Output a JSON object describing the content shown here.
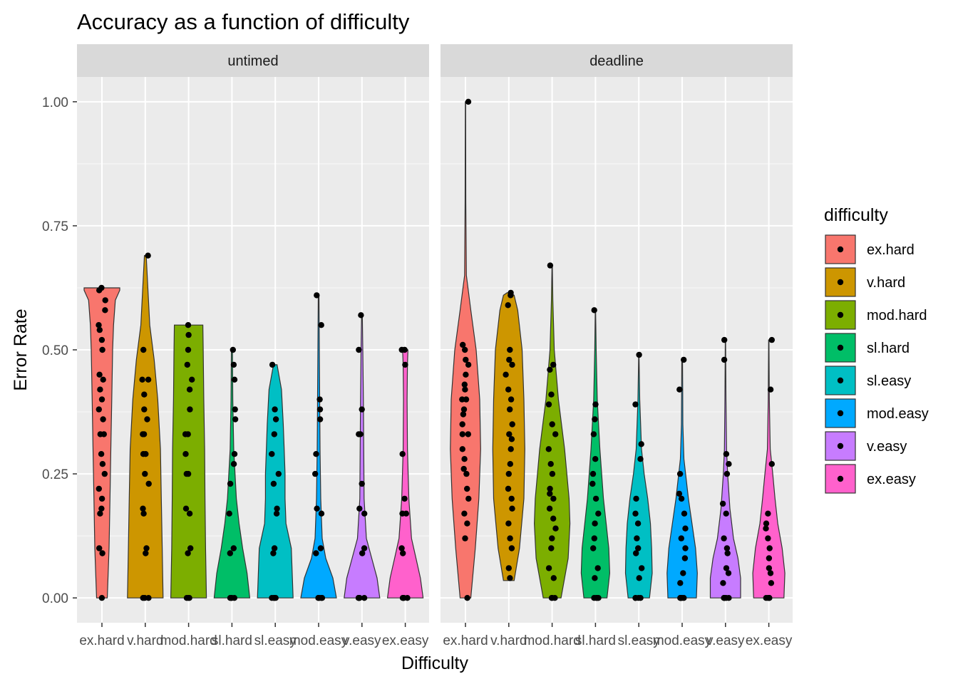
{
  "chart_data": {
    "type": "violin",
    "title": "Accuracy as a function of difficulty",
    "xlabel": "Difficulty",
    "ylabel": "Error Rate",
    "ylim": [
      -0.05,
      1.05
    ],
    "yticks": [
      0.0,
      0.25,
      0.5,
      0.75,
      1.0
    ],
    "ytick_labels": [
      "0.00",
      "0.25",
      "0.50",
      "0.75",
      "1.00"
    ],
    "grid": true,
    "legend": {
      "title": "difficulty",
      "placement": "right",
      "entries": [
        "ex.hard",
        "v.hard",
        "mod.hard",
        "sl.hard",
        "sl.easy",
        "mod.easy",
        "v.easy",
        "ex.easy"
      ]
    },
    "categories": [
      "ex.hard",
      "v.hard",
      "mod.hard",
      "sl.hard",
      "sl.easy",
      "mod.easy",
      "v.easy",
      "ex.easy"
    ],
    "colors": [
      "#F8766D",
      "#CD9600",
      "#7CAE00",
      "#00BE67",
      "#00BFC4",
      "#00A9FF",
      "#C77CFF",
      "#FF61CC"
    ],
    "panels": [
      {
        "name": "untimed",
        "groups": [
          {
            "category": "ex.hard",
            "points": [
              0.0,
              0.09,
              0.1,
              0.17,
              0.18,
              0.2,
              0.22,
              0.25,
              0.27,
              0.29,
              0.33,
              0.33,
              0.36,
              0.38,
              0.4,
              0.42,
              0.44,
              0.45,
              0.5,
              0.52,
              0.54,
              0.55,
              0.58,
              0.6,
              0.62,
              0.625
            ],
            "density": [
              [
                0.0,
                0.3
              ],
              [
                0.1,
                0.4
              ],
              [
                0.2,
                0.45
              ],
              [
                0.3,
                0.5
              ],
              [
                0.4,
                0.55
              ],
              [
                0.5,
                0.6
              ],
              [
                0.55,
                0.65
              ],
              [
                0.6,
                0.75
              ],
              [
                0.62,
                1.0
              ],
              [
                0.625,
                1.0
              ]
            ]
          },
          {
            "category": "v.hard",
            "points": [
              0.0,
              0.0,
              0.0,
              0.09,
              0.1,
              0.17,
              0.18,
              0.23,
              0.25,
              0.29,
              0.29,
              0.33,
              0.33,
              0.36,
              0.38,
              0.41,
              0.44,
              0.44,
              0.5,
              0.69
            ],
            "density": [
              [
                0.0,
                1.0
              ],
              [
                0.1,
                0.95
              ],
              [
                0.2,
                0.9
              ],
              [
                0.3,
                0.85
              ],
              [
                0.4,
                0.7
              ],
              [
                0.48,
                0.5
              ],
              [
                0.55,
                0.25
              ],
              [
                0.62,
                0.15
              ],
              [
                0.69,
                0.05
              ]
            ]
          },
          {
            "category": "mod.hard",
            "points": [
              0.0,
              0.0,
              0.0,
              0.09,
              0.1,
              0.17,
              0.18,
              0.25,
              0.25,
              0.29,
              0.33,
              0.33,
              0.38,
              0.42,
              0.44,
              0.47,
              0.5,
              0.53,
              0.55
            ],
            "density": [
              [
                0.0,
                1.0
              ],
              [
                0.1,
                0.95
              ],
              [
                0.2,
                0.92
              ],
              [
                0.3,
                0.9
              ],
              [
                0.4,
                0.85
              ],
              [
                0.5,
                0.82
              ],
              [
                0.55,
                0.8
              ]
            ]
          },
          {
            "category": "sl.hard",
            "points": [
              0.0,
              0.0,
              0.0,
              0.0,
              0.09,
              0.1,
              0.17,
              0.23,
              0.27,
              0.29,
              0.36,
              0.38,
              0.44,
              0.47,
              0.5
            ],
            "density": [
              [
                0.0,
                1.0
              ],
              [
                0.05,
                0.85
              ],
              [
                0.1,
                0.6
              ],
              [
                0.15,
                0.4
              ],
              [
                0.2,
                0.25
              ],
              [
                0.3,
                0.1
              ],
              [
                0.4,
                0.05
              ],
              [
                0.5,
                0.03
              ]
            ]
          },
          {
            "category": "sl.easy",
            "points": [
              0.0,
              0.0,
              0.0,
              0.0,
              0.09,
              0.1,
              0.17,
              0.18,
              0.23,
              0.25,
              0.29,
              0.33,
              0.36,
              0.38,
              0.47
            ],
            "density": [
              [
                0.0,
                1.0
              ],
              [
                0.1,
                0.9
              ],
              [
                0.15,
                0.6
              ],
              [
                0.2,
                0.55
              ],
              [
                0.25,
                0.55
              ],
              [
                0.3,
                0.5
              ],
              [
                0.35,
                0.45
              ],
              [
                0.42,
                0.35
              ],
              [
                0.47,
                0.1
              ]
            ]
          },
          {
            "category": "mod.easy",
            "points": [
              0.0,
              0.0,
              0.0,
              0.0,
              0.0,
              0.09,
              0.1,
              0.17,
              0.18,
              0.25,
              0.29,
              0.36,
              0.38,
              0.4,
              0.55,
              0.61
            ],
            "density": [
              [
                0.0,
                1.0
              ],
              [
                0.04,
                0.8
              ],
              [
                0.08,
                0.4
              ],
              [
                0.12,
                0.2
              ],
              [
                0.2,
                0.12
              ],
              [
                0.3,
                0.08
              ],
              [
                0.4,
                0.06
              ],
              [
                0.5,
                0.04
              ],
              [
                0.61,
                0.02
              ]
            ]
          },
          {
            "category": "v.easy",
            "points": [
              0.0,
              0.0,
              0.0,
              0.0,
              0.0,
              0.09,
              0.1,
              0.17,
              0.18,
              0.23,
              0.33,
              0.33,
              0.38,
              0.5,
              0.57
            ],
            "density": [
              [
                0.0,
                1.0
              ],
              [
                0.04,
                0.85
              ],
              [
                0.08,
                0.55
              ],
              [
                0.12,
                0.25
              ],
              [
                0.2,
                0.12
              ],
              [
                0.3,
                0.1
              ],
              [
                0.4,
                0.08
              ],
              [
                0.5,
                0.05
              ],
              [
                0.57,
                0.02
              ]
            ]
          },
          {
            "category": "ex.easy",
            "points": [
              0.0,
              0.0,
              0.0,
              0.0,
              0.09,
              0.1,
              0.17,
              0.17,
              0.2,
              0.29,
              0.47,
              0.5,
              0.5
            ],
            "density": [
              [
                0.0,
                1.0
              ],
              [
                0.04,
                0.85
              ],
              [
                0.08,
                0.6
              ],
              [
                0.12,
                0.35
              ],
              [
                0.2,
                0.2
              ],
              [
                0.3,
                0.12
              ],
              [
                0.4,
                0.1
              ],
              [
                0.47,
                0.12
              ],
              [
                0.5,
                0.15
              ]
            ]
          }
        ]
      },
      {
        "name": "deadline",
        "groups": [
          {
            "category": "ex.hard",
            "points": [
              0.0,
              0.12,
              0.15,
              0.17,
              0.2,
              0.22,
              0.25,
              0.26,
              0.28,
              0.3,
              0.33,
              0.33,
              0.35,
              0.37,
              0.38,
              0.4,
              0.4,
              0.42,
              0.43,
              0.45,
              0.47,
              0.48,
              0.5,
              0.51,
              1.0
            ],
            "density": [
              [
                0.0,
                0.3
              ],
              [
                0.1,
                0.55
              ],
              [
                0.2,
                0.75
              ],
              [
                0.3,
                0.85
              ],
              [
                0.4,
                0.8
              ],
              [
                0.5,
                0.6
              ],
              [
                0.58,
                0.3
              ],
              [
                0.65,
                0.05
              ],
              [
                0.8,
                0.02
              ],
              [
                1.0,
                0.01
              ]
            ]
          },
          {
            "category": "v.hard",
            "points": [
              0.04,
              0.06,
              0.1,
              0.12,
              0.15,
              0.18,
              0.2,
              0.22,
              0.25,
              0.27,
              0.3,
              0.32,
              0.33,
              0.35,
              0.38,
              0.4,
              0.42,
              0.45,
              0.47,
              0.48,
              0.5,
              0.59,
              0.61,
              0.615
            ],
            "density": [
              [
                0.035,
                0.3
              ],
              [
                0.1,
                0.6
              ],
              [
                0.2,
                0.85
              ],
              [
                0.3,
                0.9
              ],
              [
                0.4,
                0.85
              ],
              [
                0.5,
                0.75
              ],
              [
                0.58,
                0.5
              ],
              [
                0.61,
                0.3
              ],
              [
                0.615,
                0.1
              ]
            ]
          },
          {
            "category": "mod.hard",
            "points": [
              0.0,
              0.0,
              0.0,
              0.04,
              0.06,
              0.1,
              0.12,
              0.14,
              0.16,
              0.18,
              0.2,
              0.21,
              0.22,
              0.25,
              0.27,
              0.3,
              0.33,
              0.35,
              0.39,
              0.41,
              0.46,
              0.47,
              0.67
            ],
            "density": [
              [
                0.0,
                0.5
              ],
              [
                0.08,
                0.9
              ],
              [
                0.15,
                1.0
              ],
              [
                0.2,
                0.95
              ],
              [
                0.3,
                0.7
              ],
              [
                0.4,
                0.35
              ],
              [
                0.5,
                0.12
              ],
              [
                0.6,
                0.04
              ],
              [
                0.67,
                0.01
              ]
            ]
          },
          {
            "category": "sl.hard",
            "points": [
              0.0,
              0.0,
              0.0,
              0.0,
              0.04,
              0.06,
              0.1,
              0.12,
              0.15,
              0.17,
              0.2,
              0.23,
              0.25,
              0.28,
              0.33,
              0.36,
              0.39,
              0.58
            ],
            "density": [
              [
                0.0,
                0.65
              ],
              [
                0.05,
                0.8
              ],
              [
                0.1,
                0.75
              ],
              [
                0.15,
                0.6
              ],
              [
                0.2,
                0.45
              ],
              [
                0.3,
                0.25
              ],
              [
                0.4,
                0.1
              ],
              [
                0.5,
                0.04
              ],
              [
                0.58,
                0.01
              ]
            ]
          },
          {
            "category": "sl.easy",
            "points": [
              0.0,
              0.0,
              0.0,
              0.0,
              0.04,
              0.06,
              0.09,
              0.1,
              0.12,
              0.15,
              0.17,
              0.2,
              0.28,
              0.31,
              0.39,
              0.49
            ],
            "density": [
              [
                0.0,
                0.6
              ],
              [
                0.05,
                0.75
              ],
              [
                0.1,
                0.72
              ],
              [
                0.15,
                0.65
              ],
              [
                0.2,
                0.5
              ],
              [
                0.25,
                0.3
              ],
              [
                0.3,
                0.15
              ],
              [
                0.4,
                0.05
              ],
              [
                0.49,
                0.01
              ]
            ]
          },
          {
            "category": "mod.easy",
            "points": [
              0.0,
              0.0,
              0.0,
              0.0,
              0.0,
              0.03,
              0.05,
              0.08,
              0.1,
              0.12,
              0.14,
              0.17,
              0.2,
              0.21,
              0.25,
              0.42,
              0.48
            ],
            "density": [
              [
                0.0,
                0.8
              ],
              [
                0.05,
                0.85
              ],
              [
                0.1,
                0.75
              ],
              [
                0.15,
                0.55
              ],
              [
                0.2,
                0.35
              ],
              [
                0.28,
                0.1
              ],
              [
                0.35,
                0.04
              ],
              [
                0.42,
                0.03
              ],
              [
                0.48,
                0.02
              ]
            ]
          },
          {
            "category": "v.easy",
            "points": [
              0.0,
              0.0,
              0.0,
              0.0,
              0.0,
              0.03,
              0.05,
              0.06,
              0.09,
              0.1,
              0.12,
              0.17,
              0.19,
              0.25,
              0.27,
              0.29,
              0.48,
              0.52
            ],
            "density": [
              [
                0.0,
                0.85
              ],
              [
                0.04,
                0.85
              ],
              [
                0.08,
                0.7
              ],
              [
                0.12,
                0.45
              ],
              [
                0.18,
                0.25
              ],
              [
                0.25,
                0.12
              ],
              [
                0.3,
                0.06
              ],
              [
                0.4,
                0.03
              ],
              [
                0.52,
                0.01
              ]
            ]
          },
          {
            "category": "ex.easy",
            "points": [
              0.0,
              0.0,
              0.0,
              0.0,
              0.03,
              0.05,
              0.06,
              0.08,
              0.1,
              0.12,
              0.14,
              0.15,
              0.17,
              0.27,
              0.42,
              0.52
            ],
            "density": [
              [
                0.0,
                0.85
              ],
              [
                0.05,
                0.9
              ],
              [
                0.1,
                0.75
              ],
              [
                0.15,
                0.5
              ],
              [
                0.2,
                0.35
              ],
              [
                0.25,
                0.22
              ],
              [
                0.3,
                0.08
              ],
              [
                0.4,
                0.03
              ],
              [
                0.52,
                0.01
              ]
            ]
          }
        ]
      }
    ]
  }
}
